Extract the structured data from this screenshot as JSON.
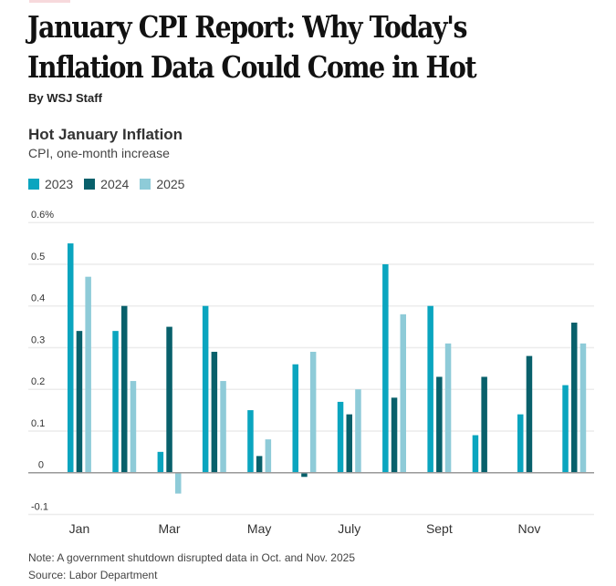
{
  "article": {
    "headline": "January CPI Report: Why Today's Inflation Data Could Come in Hot",
    "byline": "By WSJ Staff"
  },
  "colors": {
    "2023": "#0aa5bf",
    "2024": "#08606b",
    "2025": "#8ecbd8"
  },
  "chart_data": {
    "type": "bar",
    "title": "Hot January Inflation",
    "subtitle": "CPI, one-month increase",
    "xlabel": "",
    "ylabel": "",
    "categories": [
      "Jan",
      "Feb",
      "Mar",
      "Apr",
      "May",
      "Jun",
      "Jul",
      "Aug",
      "Sep",
      "Oct",
      "Nov",
      "Dec"
    ],
    "x_tick_labels": [
      {
        "index": 0,
        "label": "Jan"
      },
      {
        "index": 2,
        "label": "Mar"
      },
      {
        "index": 4,
        "label": "May"
      },
      {
        "index": 6,
        "label": "July"
      },
      {
        "index": 8,
        "label": "Sept"
      },
      {
        "index": 10,
        "label": "Nov"
      }
    ],
    "y_ticks": [
      {
        "value": 0.6,
        "label": "0.6%"
      },
      {
        "value": 0.5,
        "label": "0.5"
      },
      {
        "value": 0.4,
        "label": "0.4"
      },
      {
        "value": 0.3,
        "label": "0.3"
      },
      {
        "value": 0.2,
        "label": "0.2"
      },
      {
        "value": 0.1,
        "label": "0.1"
      },
      {
        "value": 0,
        "label": "0"
      },
      {
        "value": -0.1,
        "label": "-0.1"
      }
    ],
    "ylim": [
      -0.1,
      0.6
    ],
    "grid": true,
    "legend_position": "top-left",
    "series": [
      {
        "name": "2023",
        "values": [
          0.55,
          0.34,
          0.05,
          0.4,
          0.15,
          0.26,
          0.17,
          0.5,
          0.4,
          0.09,
          0.14,
          0.21
        ]
      },
      {
        "name": "2024",
        "values": [
          0.34,
          0.4,
          0.35,
          0.29,
          0.04,
          -0.01,
          0.14,
          0.18,
          0.23,
          0.23,
          0.28,
          0.36
        ]
      },
      {
        "name": "2025",
        "values": [
          0.47,
          0.22,
          -0.05,
          0.22,
          0.08,
          0.29,
          0.2,
          0.38,
          0.31,
          null,
          null,
          0.31
        ]
      }
    ]
  },
  "footer": {
    "note": "Note: A government shutdown disrupted data in Oct. and Nov. 2025",
    "source": "Source: Labor Department"
  }
}
